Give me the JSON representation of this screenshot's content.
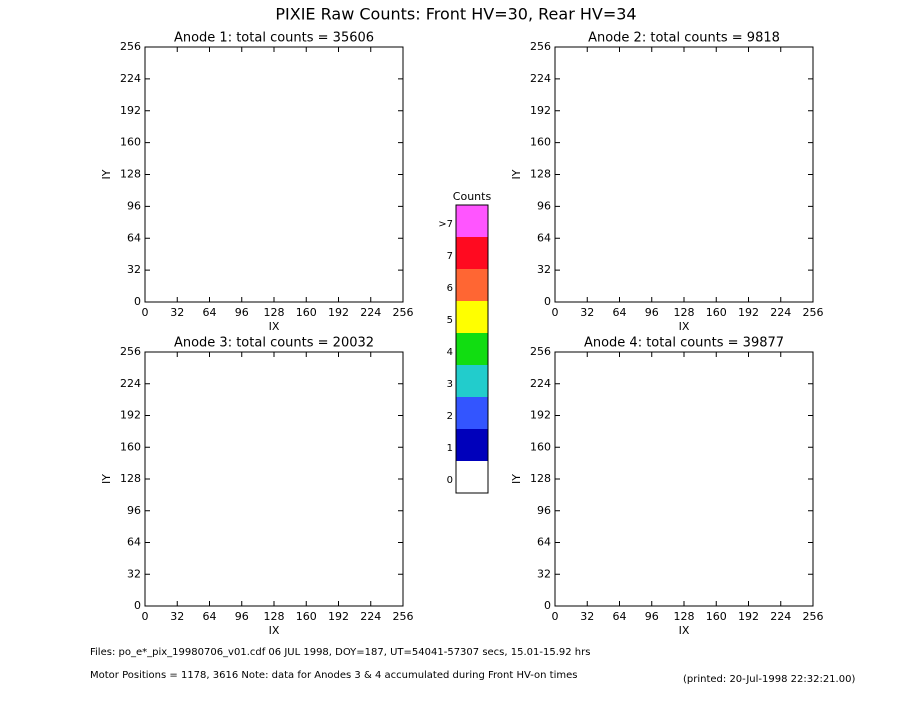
{
  "title": "PIXIE Raw Counts:  Front HV=30, Rear HV=34",
  "chart_data": [
    {
      "type": "heatmap",
      "title": "Anode 1: total counts = 35606",
      "x_label": "IX",
      "y_label": "IY",
      "xlim": [
        0,
        256
      ],
      "ylim": [
        0,
        256
      ],
      "xticks": [
        0,
        32,
        64,
        96,
        128,
        160,
        192,
        224,
        256
      ],
      "yticks": [
        0,
        32,
        64,
        96,
        128,
        160,
        192,
        224,
        256
      ]
    },
    {
      "type": "heatmap",
      "title": "Anode 2: total counts = 9818",
      "x_label": "IX",
      "y_label": "IY",
      "xlim": [
        0,
        256
      ],
      "ylim": [
        0,
        256
      ],
      "xticks": [
        0,
        32,
        64,
        96,
        128,
        160,
        192,
        224,
        256
      ],
      "yticks": [
        0,
        32,
        64,
        96,
        128,
        160,
        192,
        224,
        256
      ]
    },
    {
      "type": "heatmap",
      "title": "Anode 3: total counts = 20032",
      "x_label": "IX",
      "y_label": "IY",
      "xlim": [
        0,
        256
      ],
      "ylim": [
        0,
        256
      ],
      "xticks": [
        0,
        32,
        64,
        96,
        128,
        160,
        192,
        224,
        256
      ],
      "yticks": [
        0,
        32,
        64,
        96,
        128,
        160,
        192,
        224,
        256
      ]
    },
    {
      "type": "heatmap",
      "title": "Anode 4: total counts = 39877",
      "x_label": "IX",
      "y_label": "IY",
      "xlim": [
        0,
        256
      ],
      "ylim": [
        0,
        256
      ],
      "xticks": [
        0,
        32,
        64,
        96,
        128,
        160,
        192,
        224,
        256
      ],
      "yticks": [
        0,
        32,
        64,
        96,
        128,
        160,
        192,
        224,
        256
      ]
    }
  ],
  "colorbar": {
    "title": "Counts",
    "levels": [
      {
        "label": ">7",
        "color": "#ff55ff"
      },
      {
        "label": "7",
        "color": "#ff0a20"
      },
      {
        "label": "6",
        "color": "#ff6633"
      },
      {
        "label": "5",
        "color": "#ffff00"
      },
      {
        "label": "4",
        "color": "#11dd11"
      },
      {
        "label": "3",
        "color": "#22cccc"
      },
      {
        "label": "2",
        "color": "#3355ff"
      },
      {
        "label": "1",
        "color": "#0000bb"
      },
      {
        "label": "0",
        "color": "#ffffff"
      }
    ]
  },
  "footer": {
    "files": "Files: po_e*_pix_19980706_v01.cdf    06 JUL 1998, DOY=187, UT=54041-57307 secs, 15.01-15.92 hrs",
    "motor": "Motor Positions = 1178, 3616    Note: data for Anodes 3 & 4 accumulated during Front HV-on times",
    "printed": "(printed: 20-Jul-1998 22:32:21.00)"
  }
}
